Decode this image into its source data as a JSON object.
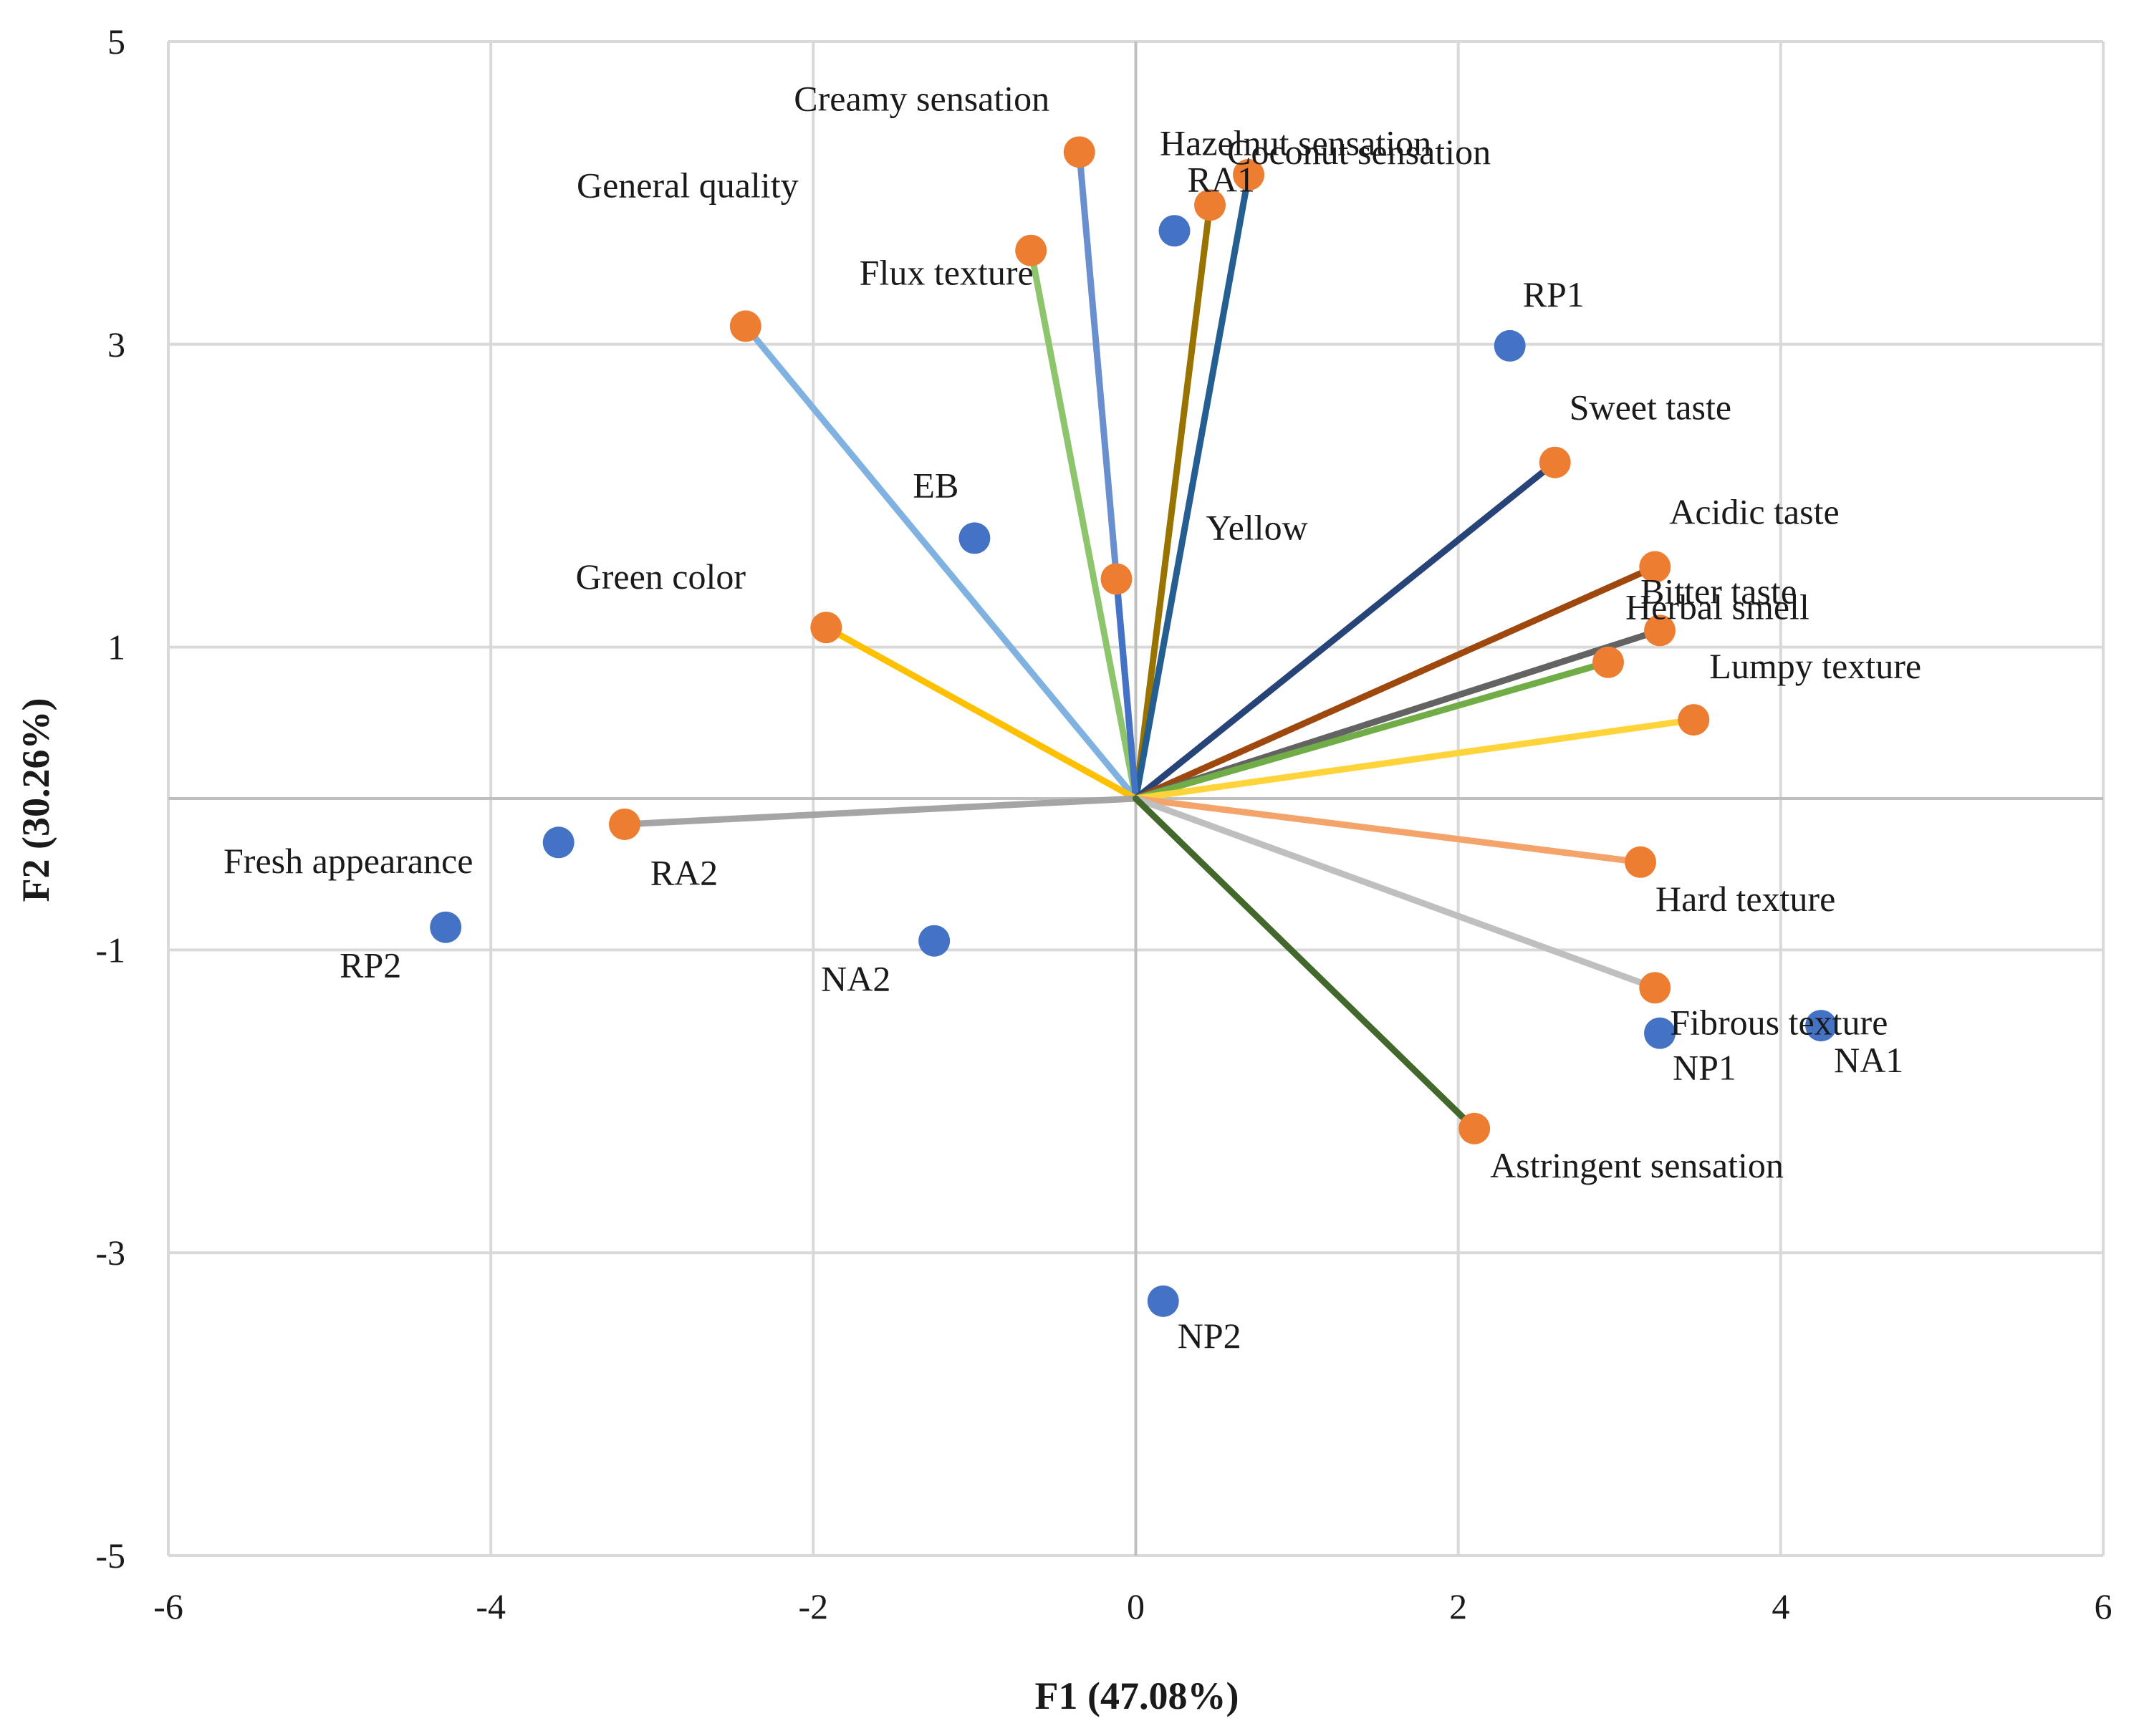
{
  "chart_data": {
    "type": "scatter",
    "title": "",
    "xlabel": "F1 (47.08%)",
    "ylabel": "F2 (30.26%)",
    "xlim": [
      -6,
      6
    ],
    "ylim": [
      -5,
      5
    ],
    "xticks": [
      -6,
      -4,
      -2,
      0,
      2,
      4,
      6
    ],
    "yticks": [
      -5,
      -3,
      -1,
      1,
      3,
      5
    ],
    "grid": true,
    "legend": "none",
    "colors": {
      "observation": "#4472c4",
      "variable": "#ed7d31",
      "grid": "#d9d9d9",
      "axis": "#bfbfbf"
    },
    "observations": [
      {
        "label": "RA1",
        "x": 0.24,
        "y": 3.75
      },
      {
        "label": "RP1",
        "x": 2.32,
        "y": 2.99
      },
      {
        "label": "EB",
        "x": -1.0,
        "y": 1.72
      },
      {
        "label": "RA2",
        "x": -3.58,
        "y": -0.29
      },
      {
        "label": "RP2",
        "x": -4.28,
        "y": -0.85
      },
      {
        "label": "NA2",
        "x": -1.25,
        "y": -0.94
      },
      {
        "label": "NP1",
        "x": 3.25,
        "y": -1.55
      },
      {
        "label": "NA1",
        "x": 4.25,
        "y": -1.5
      },
      {
        "label": "NP2",
        "x": 0.17,
        "y": -3.32
      }
    ],
    "variables": [
      {
        "label": "Creamy sensation",
        "x": -0.35,
        "y": 4.27,
        "line_color": "#6a8fcf"
      },
      {
        "label": "Hazelnut sensation",
        "x": 0.46,
        "y": 3.92,
        "line_color": "#997300"
      },
      {
        "label": "Coconut sensation",
        "x": 0.7,
        "y": 4.12,
        "line_color": "#255e91"
      },
      {
        "label": "General quality",
        "x": -2.42,
        "y": 3.12,
        "line_color": "#7fb2e0"
      },
      {
        "label": "Flux texture",
        "x": -0.65,
        "y": 3.62,
        "line_color": "#8dc56c"
      },
      {
        "label": "Yellow",
        "x": -0.12,
        "y": 1.45,
        "line_color": "#4472c4"
      },
      {
        "label": "Green color",
        "x": -1.92,
        "y": 1.13,
        "line_color": "#ffc000"
      },
      {
        "label": "Sweet taste",
        "x": 2.6,
        "y": 2.22,
        "line_color": "#264478"
      },
      {
        "label": "Acidic taste",
        "x": 3.22,
        "y": 1.53,
        "line_color": "#9e480e"
      },
      {
        "label": "Bitter taste",
        "x": 3.25,
        "y": 1.11,
        "line_color": "#636363"
      },
      {
        "label": "Herbal smell",
        "x": 2.93,
        "y": 0.9,
        "line_color": "#70ad47"
      },
      {
        "label": "Lumpy texture",
        "x": 3.46,
        "y": 0.52,
        "line_color": "#ffd43b"
      },
      {
        "label": "Fresh appearance",
        "x": -3.17,
        "y": -0.17,
        "line_color": "#a5a5a5"
      },
      {
        "label": "Hard texture",
        "x": 3.13,
        "y": -0.42,
        "line_color": "#f4a36b"
      },
      {
        "label": "Fibrous texture",
        "x": 3.22,
        "y": -1.25,
        "line_color": "#bfbfbf"
      },
      {
        "label": "Astringent sensation",
        "x": 2.1,
        "y": -2.18,
        "line_color": "#43682b"
      }
    ]
  }
}
